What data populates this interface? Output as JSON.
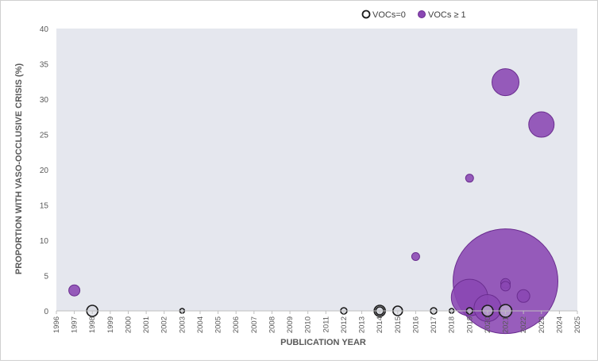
{
  "chart_data": {
    "type": "scatter",
    "title": "",
    "xlabel": "PUBLICATION YEAR",
    "ylabel": "PROPORTION WITH VASO-OCCLUSIVE CRISIS (%)",
    "xlim": [
      1996,
      2025
    ],
    "ylim": [
      0,
      40
    ],
    "x_ticks": [
      "1996",
      "1997",
      "1998",
      "1999",
      "2000",
      "2001",
      "2002",
      "2003",
      "2004",
      "2005",
      "2006",
      "2007",
      "2008",
      "2009",
      "2010",
      "2011",
      "2012",
      "2013",
      "2014",
      "2015",
      "2016",
      "2017",
      "2018",
      "2019",
      "2020",
      "2021",
      "2022",
      "2023",
      "2024",
      "2025"
    ],
    "y_ticks": [
      "0",
      "5",
      "10",
      "15",
      "20",
      "25",
      "30",
      "35",
      "40"
    ],
    "grid": false,
    "plot_background": "#e5e7ee",
    "legend_position": "top-center",
    "series": [
      {
        "name": "VOCs=0",
        "marker": "hollow circle",
        "edge_color": "#1a1a1a",
        "fill_color": "#cfd2da",
        "points": [
          {
            "x": 1998,
            "y": 0.0,
            "size": 7
          },
          {
            "x": 2003,
            "y": 0.0,
            "size": 3
          },
          {
            "x": 2012,
            "y": 0.0,
            "size": 4
          },
          {
            "x": 2014,
            "y": 0.0,
            "size": 7
          },
          {
            "x": 2014,
            "y": 0.0,
            "size": 5
          },
          {
            "x": 2015,
            "y": 0.0,
            "size": 6
          },
          {
            "x": 2017,
            "y": 0.0,
            "size": 4
          },
          {
            "x": 2018,
            "y": 0.0,
            "size": 3
          },
          {
            "x": 2019,
            "y": 0.0,
            "size": 4
          },
          {
            "x": 2020,
            "y": 0.0,
            "size": 7
          },
          {
            "x": 2021,
            "y": 0.0,
            "size": 8
          }
        ]
      },
      {
        "name": "VOCs ≥ 1",
        "marker": "filled circle",
        "edge_color": "#6a2d8f",
        "fill_color": "#8a47b3",
        "points": [
          {
            "x": 1997,
            "y": 2.9,
            "size": 7
          },
          {
            "x": 2016,
            "y": 7.7,
            "size": 5
          },
          {
            "x": 2019,
            "y": 18.8,
            "size": 5
          },
          {
            "x": 2019,
            "y": 1.9,
            "size": 23
          },
          {
            "x": 2020,
            "y": 0.4,
            "size": 17
          },
          {
            "x": 2021,
            "y": 32.4,
            "size": 17
          },
          {
            "x": 2021,
            "y": 4.2,
            "size": 66
          },
          {
            "x": 2021,
            "y": 3.9,
            "size": 6
          },
          {
            "x": 2021,
            "y": 3.5,
            "size": 6
          },
          {
            "x": 2022,
            "y": 2.1,
            "size": 8
          },
          {
            "x": 2023,
            "y": 26.4,
            "size": 16
          }
        ]
      }
    ]
  }
}
